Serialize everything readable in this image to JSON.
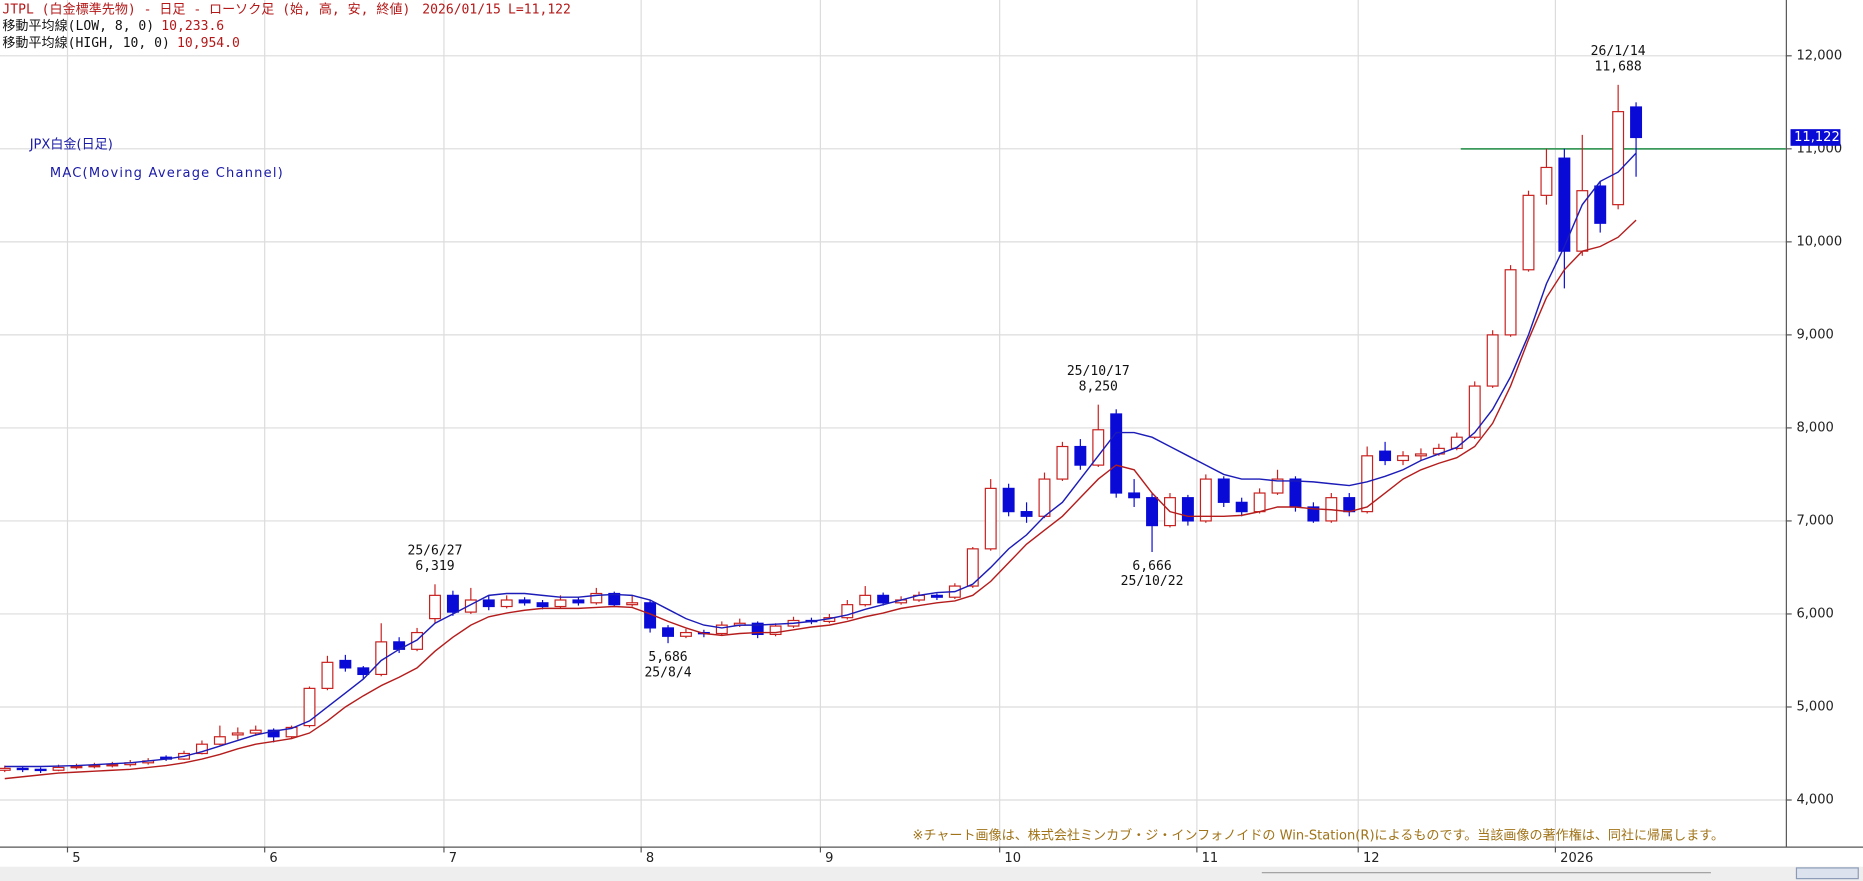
{
  "chart_data": {
    "type": "candlestick",
    "header": {
      "instrument": "JTPL (白金標準先物) - 日足 - ローソク足 (始, 高, 安, 終値)",
      "date": "2026/01/15",
      "last": "L=11,122"
    },
    "title": "JPX白金(日足)",
    "subtitle": "MAC(Moving Average Channel)",
    "note": "※チャート画像は、株式会社ミンカブ・ジ・インフォノイドの Win-Station(R)によるものです。当該画像の著作権は、同社に帰属します。",
    "categories": [
      null,
      null,
      null,
      null,
      "5",
      null,
      null,
      null,
      null,
      null,
      null,
      null,
      null,
      null,
      null,
      "6",
      null,
      null,
      null,
      null,
      null,
      null,
      null,
      null,
      null,
      "7",
      null,
      null,
      null,
      null,
      null,
      null,
      null,
      null,
      null,
      null,
      "8",
      null,
      null,
      null,
      null,
      null,
      null,
      null,
      null,
      null,
      "9",
      null,
      null,
      null,
      null,
      null,
      null,
      null,
      null,
      null,
      "10",
      null,
      null,
      null,
      null,
      null,
      null,
      null,
      null,
      null,
      null,
      "11",
      null,
      null,
      null,
      null,
      null,
      null,
      null,
      null,
      "12",
      null,
      null,
      null,
      null,
      null,
      null,
      null,
      null,
      null,
      null,
      "2026",
      null,
      null,
      null,
      null
    ],
    "open": [
      4320,
      4340,
      4330,
      4320,
      4350,
      4360,
      4370,
      4380,
      4400,
      4460,
      4440,
      4500,
      4600,
      4700,
      4720,
      4750,
      4680,
      4800,
      5200,
      5500,
      5420,
      5350,
      5700,
      5620,
      5950,
      6200,
      6020,
      6150,
      6080,
      6150,
      6120,
      6080,
      6150,
      6120,
      6220,
      6100,
      6120,
      5850,
      5760,
      5800,
      5790,
      5880,
      5900,
      5780,
      5870,
      5930,
      5920,
      5960,
      6100,
      6200,
      6120,
      6150,
      6200,
      6180,
      6300,
      6700,
      7350,
      7100,
      7050,
      7450,
      7800,
      7600,
      8150,
      7300,
      7250,
      6950,
      7250,
      7000,
      7450,
      7200,
      7100,
      7300,
      7450,
      7150,
      7000,
      7250,
      7100,
      7750,
      7650,
      7700,
      7720,
      7780,
      7900,
      8450,
      9000,
      9700,
      10500,
      10900,
      9900,
      10600,
      10400,
      11450
    ],
    "high": [
      4370,
      4360,
      4350,
      4380,
      4390,
      4400,
      4410,
      4430,
      4450,
      4480,
      4530,
      4640,
      4800,
      4780,
      4800,
      4770,
      4800,
      5220,
      5550,
      5560,
      5440,
      5900,
      5750,
      5850,
      6319,
      6250,
      6280,
      6200,
      6200,
      6180,
      6150,
      6200,
      6180,
      6280,
      6240,
      6200,
      6150,
      5880,
      5840,
      5830,
      5920,
      5950,
      5920,
      5900,
      5970,
      5960,
      6000,
      6150,
      6300,
      6230,
      6190,
      6240,
      6220,
      6330,
      6720,
      7450,
      7400,
      7200,
      7520,
      7850,
      7880,
      8250,
      8200,
      7450,
      7300,
      7300,
      7280,
      7500,
      7480,
      7250,
      7350,
      7550,
      7480,
      7200,
      7300,
      7300,
      7800,
      7850,
      7750,
      7780,
      7830,
      7950,
      8500,
      9050,
      9750,
      10550,
      11000,
      11000,
      11150,
      10650,
      11688,
      11500
    ],
    "low": [
      4300,
      4300,
      4290,
      4310,
      4330,
      4340,
      4350,
      4360,
      4380,
      4420,
      4430,
      4490,
      4590,
      4650,
      4690,
      4620,
      4660,
      4780,
      5180,
      5380,
      5300,
      5330,
      5580,
      5600,
      5900,
      5980,
      6000,
      6040,
      6060,
      6090,
      6050,
      6060,
      6090,
      6100,
      6080,
      6080,
      5800,
      5686,
      5740,
      5750,
      5770,
      5860,
      5740,
      5760,
      5850,
      5890,
      5900,
      5940,
      6080,
      6090,
      6100,
      6130,
      6150,
      6160,
      6280,
      6680,
      7050,
      6980,
      7030,
      7430,
      7550,
      7580,
      7250,
      7150,
      6666,
      6930,
      6950,
      6980,
      7150,
      7050,
      7080,
      7280,
      7100,
      6980,
      6980,
      7050,
      7080,
      7600,
      7600,
      7650,
      7700,
      7760,
      7880,
      8430,
      8980,
      9680,
      10400,
      9500,
      9850,
      10100,
      10350,
      10700
    ],
    "close": [
      4340,
      4330,
      4320,
      4350,
      4360,
      4370,
      4380,
      4400,
      4420,
      4440,
      4500,
      4600,
      4680,
      4720,
      4750,
      4680,
      4780,
      5200,
      5480,
      5420,
      5350,
      5700,
      5620,
      5800,
      6200,
      6020,
      6150,
      6080,
      6150,
      6120,
      6080,
      6150,
      6120,
      6220,
      6100,
      6120,
      5850,
      5760,
      5800,
      5790,
      5880,
      5900,
      5780,
      5870,
      5930,
      5920,
      5960,
      6100,
      6200,
      6120,
      6150,
      6200,
      6180,
      6300,
      6700,
      7350,
      7100,
      7050,
      7450,
      7800,
      7600,
      7980,
      7300,
      7250,
      6950,
      7250,
      7000,
      7450,
      7200,
      7100,
      7300,
      7450,
      7150,
      7000,
      7250,
      7100,
      7700,
      7650,
      7700,
      7720,
      7780,
      7900,
      8450,
      9000,
      9700,
      10500,
      10800,
      9900,
      10550,
      10200,
      11400,
      11122
    ],
    "up_color": "#c8201e",
    "down_color": "#0a0ad6",
    "series": [
      {
        "name": "移動平均線(LOW, 8, 0)",
        "last_label": "10,233.6",
        "color": "#b51d1d",
        "values": [
          4230,
          4250,
          4270,
          4290,
          4300,
          4310,
          4320,
          4330,
          4350,
          4370,
          4400,
          4440,
          4490,
          4550,
          4600,
          4630,
          4660,
          4720,
          4850,
          5000,
          5120,
          5230,
          5320,
          5420,
          5600,
          5750,
          5880,
          5970,
          6010,
          6040,
          6060,
          6060,
          6060,
          6070,
          6080,
          6070,
          6000,
          5920,
          5850,
          5790,
          5770,
          5790,
          5800,
          5800,
          5830,
          5860,
          5880,
          5920,
          5970,
          6010,
          6060,
          6090,
          6120,
          6140,
          6200,
          6350,
          6550,
          6750,
          6900,
          7050,
          7250,
          7450,
          7600,
          7550,
          7300,
          7100,
          7050,
          7050,
          7050,
          7060,
          7100,
          7150,
          7150,
          7130,
          7120,
          7100,
          7150,
          7300,
          7450,
          7550,
          7620,
          7680,
          7800,
          8050,
          8450,
          8950,
          9400,
          9700,
          9900,
          9950,
          10050,
          10233.6
        ]
      },
      {
        "name": "移動平均線(HIGH, 10, 0)",
        "last_label": "10,954.0",
        "color": "#1c1cb8",
        "values": [
          4360,
          4360,
          4360,
          4365,
          4370,
          4380,
          4390,
          4400,
          4420,
          4440,
          4470,
          4520,
          4580,
          4640,
          4700,
          4740,
          4770,
          4850,
          5000,
          5150,
          5300,
          5500,
          5620,
          5720,
          5900,
          6000,
          6100,
          6200,
          6220,
          6220,
          6200,
          6180,
          6180,
          6200,
          6210,
          6200,
          6150,
          6050,
          5950,
          5880,
          5850,
          5880,
          5880,
          5890,
          5900,
          5920,
          5950,
          5990,
          6050,
          6100,
          6150,
          6200,
          6230,
          6240,
          6320,
          6500,
          6700,
          6850,
          7050,
          7200,
          7450,
          7700,
          7950,
          7950,
          7900,
          7800,
          7700,
          7600,
          7500,
          7450,
          7450,
          7430,
          7430,
          7420,
          7400,
          7380,
          7420,
          7480,
          7550,
          7650,
          7720,
          7790,
          7950,
          8200,
          8550,
          9000,
          9550,
          9950,
          10400,
          10650,
          10750,
          10954
        ]
      }
    ],
    "annotations": [
      {
        "date": "25/6/27",
        "price": {
          "value": 6319,
          "label": "6,319"
        },
        "position": "above"
      },
      {
        "date": "25/8/4",
        "price": {
          "value": 5686,
          "label": "5,686"
        },
        "position": "below"
      },
      {
        "date": "25/10/17",
        "price": {
          "value": 8250,
          "label": "8,250"
        },
        "position": "above"
      },
      {
        "date": "25/10/22",
        "price": {
          "value": 6666,
          "label": "6,666"
        },
        "position": "below"
      },
      {
        "date": "26/1/14",
        "price": {
          "value": 11688,
          "label": "11,688"
        },
        "position": "above"
      }
    ],
    "last_price": {
      "value": 11122,
      "label": "11,122",
      "color": "#0a0ad6"
    },
    "reference_line": {
      "value": 11000,
      "color": "#3c9a5c"
    },
    "ylim": [
      3500,
      12600
    ],
    "yticks": [
      {
        "value": 4000,
        "label": "4,000"
      },
      {
        "value": 5000,
        "label": "5,000"
      },
      {
        "value": 6000,
        "label": "6,000"
      },
      {
        "value": 7000,
        "label": "7,000"
      },
      {
        "value": 8000,
        "label": "8,000"
      },
      {
        "value": 9000,
        "label": "9,000"
      },
      {
        "value": 10000,
        "label": "10,000"
      },
      {
        "value": 11000,
        "label": "11,000"
      },
      {
        "value": 12000,
        "label": "12,000"
      }
    ],
    "grid": true
  }
}
